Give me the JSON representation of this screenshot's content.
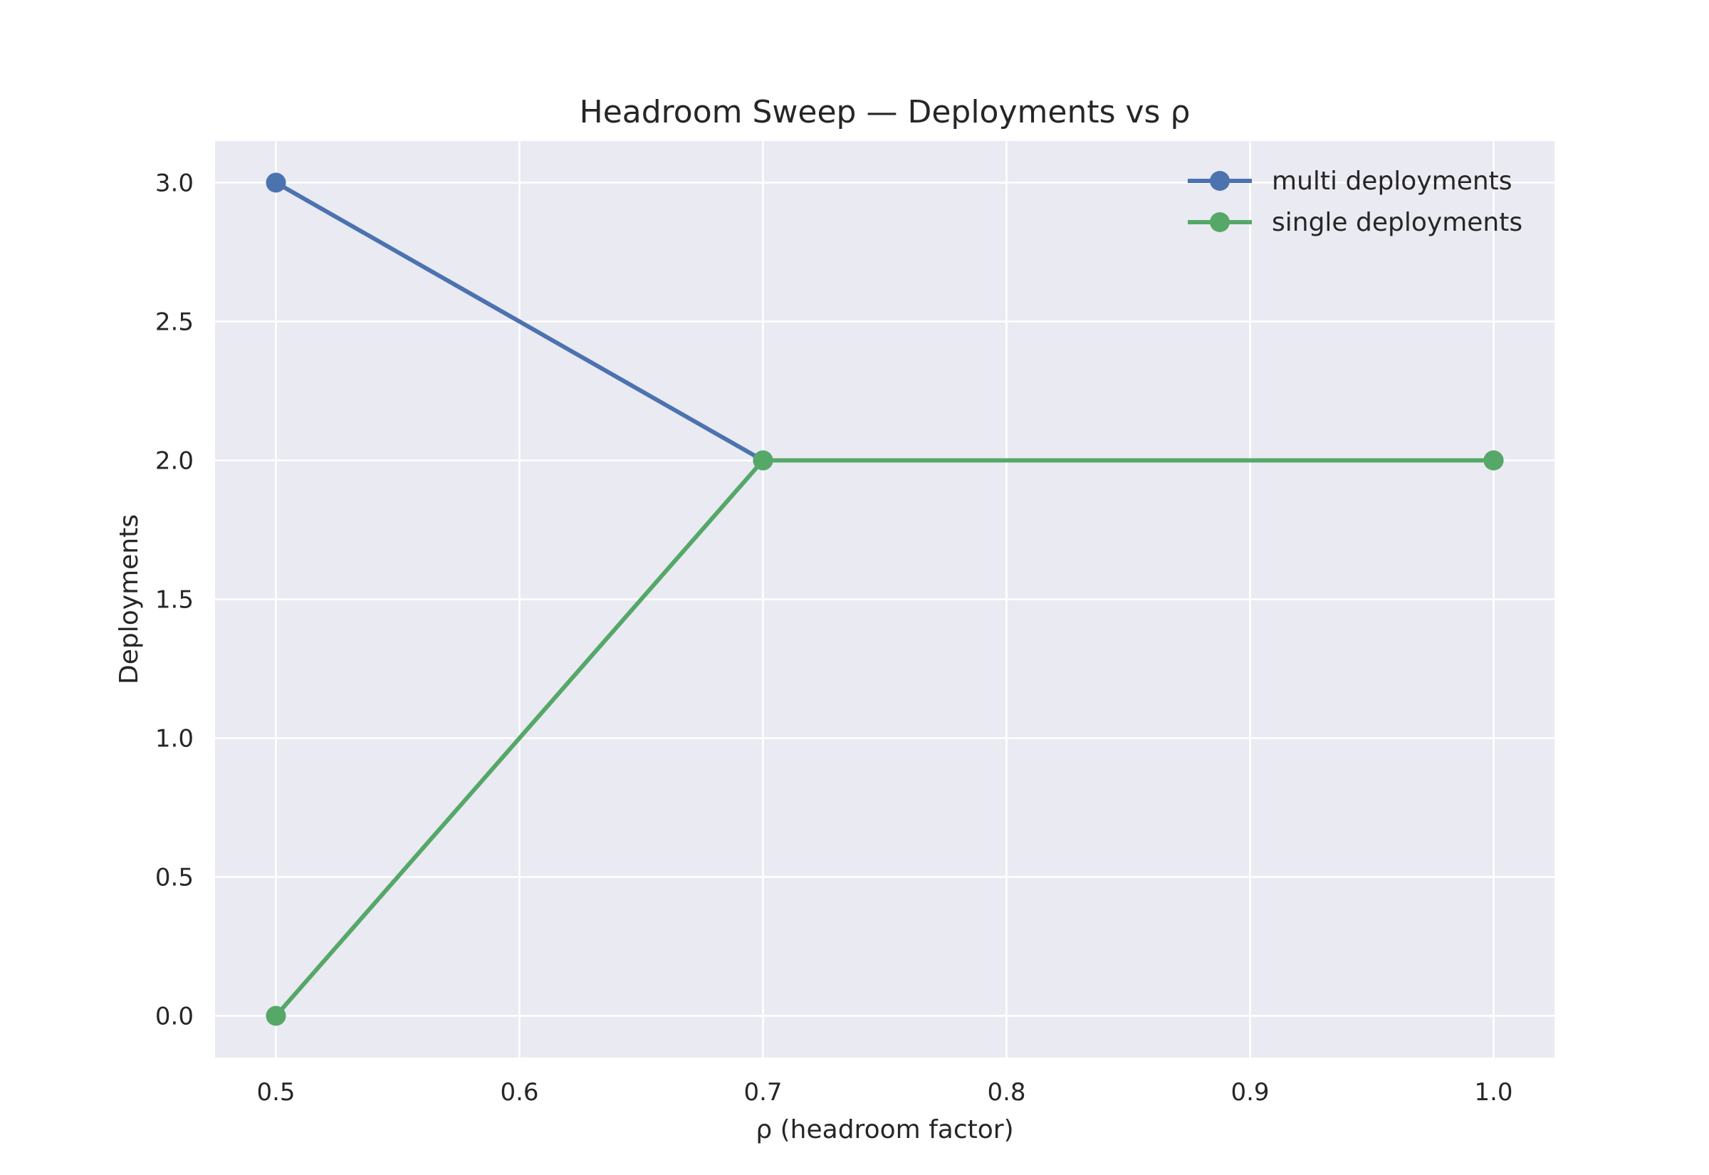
{
  "chart_data": {
    "type": "line",
    "title": "Headroom Sweep — Deployments vs ρ",
    "xlabel": "ρ (headroom factor)",
    "ylabel": "Deployments",
    "xlim": [
      0.475,
      1.025
    ],
    "ylim": [
      -0.15,
      3.15
    ],
    "xticks": [
      0.5,
      0.6,
      0.7,
      0.8,
      0.9,
      1.0
    ],
    "xtick_labels": [
      "0.5",
      "0.6",
      "0.7",
      "0.8",
      "0.9",
      "1.0"
    ],
    "yticks": [
      0.0,
      0.5,
      1.0,
      1.5,
      2.0,
      2.5,
      3.0
    ],
    "ytick_labels": [
      "0.0",
      "0.5",
      "1.0",
      "1.5",
      "2.0",
      "2.5",
      "3.0"
    ],
    "grid": true,
    "legend_position": "top-right",
    "x": [
      0.5,
      0.7,
      1.0
    ],
    "series": [
      {
        "name": "multi deployments",
        "values": [
          3,
          2,
          2
        ],
        "color": "#4c72b0"
      },
      {
        "name": "single deployments",
        "values": [
          0,
          2,
          2
        ],
        "color": "#55a868"
      }
    ],
    "plot_background": "#eaeaf2",
    "grid_color": "#ffffff"
  }
}
